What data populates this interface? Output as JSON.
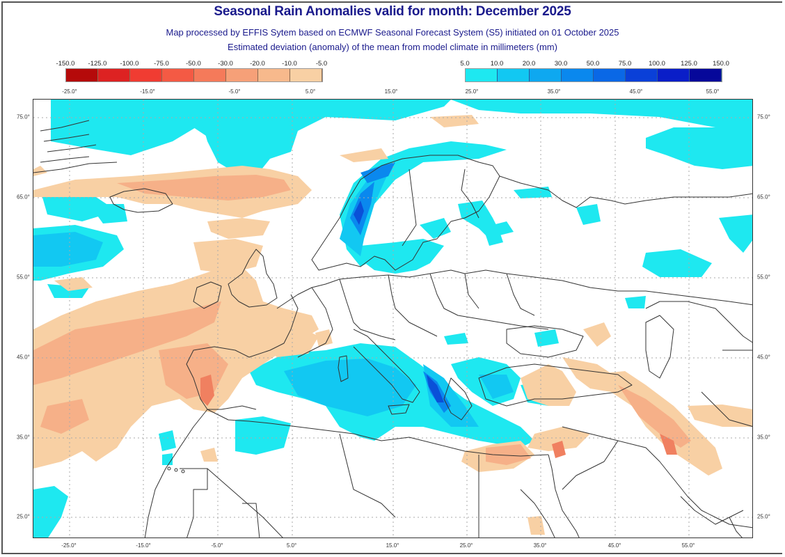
{
  "header": {
    "title": "Seasonal Rain Anomalies valid for month: December 2025",
    "subtitle_1": "Map processed by EFFIS Sytem based on ECMWF Seasonal Forecast System (S5) initiated on 01 October 2025",
    "subtitle_2": "Estimated deviation (anomaly) of the mean from model climate in millimeters (mm)"
  },
  "legend": {
    "negative": {
      "labels": [
        "-150.0",
        "-125.0",
        "-100.0",
        "-75.0",
        "-50.0",
        "-30.0",
        "-20.0",
        "-10.0",
        "-5.0"
      ],
      "colors": [
        "#b50a0a",
        "#dd2222",
        "#f03c32",
        "#f45a44",
        "#f57a5a",
        "#f6a078",
        "#f7b98c",
        "#f8d0a4"
      ]
    },
    "positive": {
      "labels": [
        "5.0",
        "10.0",
        "20.0",
        "30.0",
        "50.0",
        "75.0",
        "100.0",
        "125.0",
        "150.0"
      ],
      "colors": [
        "#1ee8f0",
        "#12c8f2",
        "#0ea8f0",
        "#0a88ee",
        "#0a68e6",
        "#0a40d8",
        "#0a1ec8",
        "#06089a"
      ]
    }
  },
  "axes": {
    "top_lon_labels": [
      "-25.0°",
      "-15.0°",
      "-5.0°",
      "5.0°",
      "15.0°",
      "25.0°",
      "35.0°",
      "45.0°",
      "55.0°"
    ],
    "bottom_lon_labels": [
      "-25.0°",
      "-15.0°",
      "-5.0°",
      "5.0°",
      "15.0°",
      "25.0°",
      "35.0°",
      "45.0°",
      "55.0°"
    ],
    "left_lat_labels": [
      "75.0°",
      "65.0°",
      "55.0°",
      "45.0°",
      "35.0°",
      "25.0°"
    ],
    "right_lat_labels": [
      "75.0°",
      "65.0°",
      "55.0°",
      "45.0°",
      "35.0°",
      "25.0°"
    ]
  },
  "map": {
    "region": "Europe, North Atlantic, North Africa, Middle East",
    "anomaly_colors": {
      "dry_light": "#f8d0a4",
      "dry_medium": "#f6b088",
      "dry_strong": "#f08060",
      "wet_light": "#1ee8f0",
      "wet_medium": "#12c8f2",
      "wet_strong": "#0a88ee",
      "wet_very_strong": "#0a50d8"
    }
  }
}
